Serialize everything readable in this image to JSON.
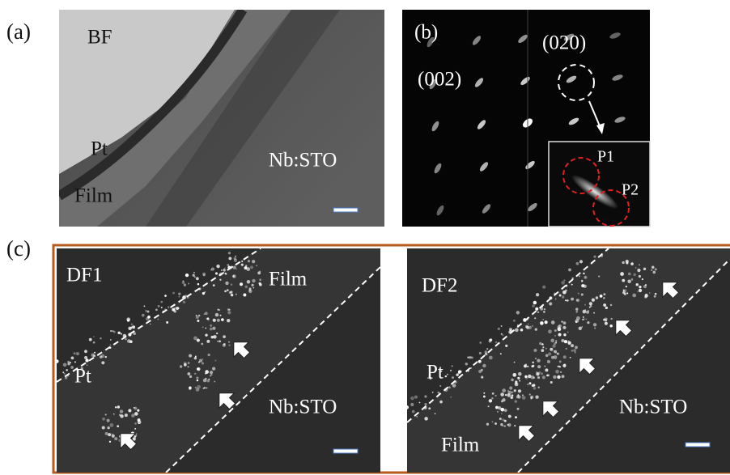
{
  "panels": {
    "a": {
      "label": "(a)",
      "mode": "BF",
      "labels": [
        "Pt",
        "Film",
        "Nb:STO"
      ]
    },
    "b": {
      "label": "(b)",
      "spots": [
        "(002)",
        "(020)"
      ],
      "inset": [
        "P1",
        "P2"
      ]
    },
    "c": {
      "label": "(c)",
      "images": [
        {
          "mode": "DF1",
          "labels": [
            "Film",
            "Pt",
            "Nb:STO"
          ]
        },
        {
          "mode": "DF2",
          "labels": [
            "Pt",
            "Film",
            "Nb:STO"
          ]
        }
      ]
    }
  }
}
